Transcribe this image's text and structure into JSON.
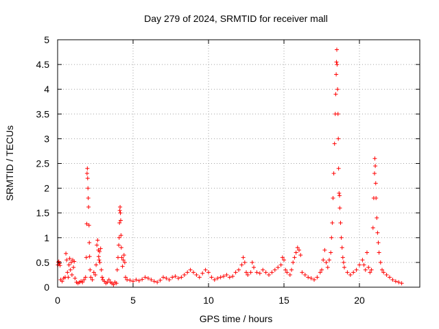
{
  "chart_data": {
    "type": "scatter",
    "title": "Day 279 of 2024, SRMTID for receiver mall",
    "xlabel": "GPS time / hours",
    "ylabel": "SRMTID / TECUs",
    "xlim": [
      0,
      24
    ],
    "ylim": [
      0,
      5
    ],
    "xticks": [
      0,
      5,
      10,
      15,
      20
    ],
    "yticks": [
      0,
      0.5,
      1,
      1.5,
      2,
      2.5,
      3,
      3.5,
      4,
      4.5,
      5
    ],
    "grid": true,
    "marker": "plus",
    "color": "#ff0000",
    "series": [
      {
        "name": "SRMTID",
        "points": [
          [
            0.02,
            0.45
          ],
          [
            0.05,
            0.5
          ],
          [
            0.08,
            0.52
          ],
          [
            0.12,
            0.48
          ],
          [
            0.16,
            0.44
          ],
          [
            0.2,
            0.15
          ],
          [
            0.3,
            0.12
          ],
          [
            0.4,
            0.18
          ],
          [
            0.5,
            0.2
          ],
          [
            0.55,
            0.68
          ],
          [
            0.6,
            0.55
          ],
          [
            0.65,
            0.3
          ],
          [
            0.7,
            0.2
          ],
          [
            0.75,
            0.45
          ],
          [
            0.8,
            0.58
          ],
          [
            0.85,
            0.35
          ],
          [
            0.9,
            0.5
          ],
          [
            0.95,
            0.25
          ],
          [
            1.0,
            0.55
          ],
          [
            1.05,
            0.4
          ],
          [
            1.1,
            0.52
          ],
          [
            1.15,
            0.18
          ],
          [
            1.25,
            0.1
          ],
          [
            1.35,
            0.08
          ],
          [
            1.45,
            0.1
          ],
          [
            1.55,
            0.12
          ],
          [
            1.65,
            0.1
          ],
          [
            1.75,
            0.15
          ],
          [
            1.85,
            0.2
          ],
          [
            1.9,
            0.6
          ],
          [
            1.93,
            1.28
          ],
          [
            1.95,
            2.3
          ],
          [
            1.97,
            2.4
          ],
          [
            1.99,
            2.2
          ],
          [
            2.01,
            2.0
          ],
          [
            2.03,
            1.8
          ],
          [
            2.05,
            1.62
          ],
          [
            2.08,
            1.25
          ],
          [
            2.1,
            0.9
          ],
          [
            2.12,
            0.62
          ],
          [
            2.15,
            0.35
          ],
          [
            2.2,
            0.2
          ],
          [
            2.3,
            0.15
          ],
          [
            2.4,
            0.3
          ],
          [
            2.5,
            0.25
          ],
          [
            2.55,
            0.45
          ],
          [
            2.6,
            0.85
          ],
          [
            2.65,
            0.95
          ],
          [
            2.7,
            0.75
          ],
          [
            2.72,
            0.62
          ],
          [
            2.75,
            0.55
          ],
          [
            2.78,
            0.72
          ],
          [
            2.8,
            0.5
          ],
          [
            2.85,
            0.78
          ],
          [
            2.9,
            0.35
          ],
          [
            2.95,
            0.2
          ],
          [
            3.0,
            0.15
          ],
          [
            3.1,
            0.12
          ],
          [
            3.2,
            0.08
          ],
          [
            3.3,
            0.1
          ],
          [
            3.4,
            0.15
          ],
          [
            3.5,
            0.1
          ],
          [
            3.6,
            0.08
          ],
          [
            3.7,
            0.05
          ],
          [
            3.8,
            0.1
          ],
          [
            3.9,
            0.08
          ],
          [
            3.95,
            0.35
          ],
          [
            4.0,
            0.6
          ],
          [
            4.05,
            0.85
          ],
          [
            4.08,
            1.0
          ],
          [
            4.1,
            1.3
          ],
          [
            4.12,
            1.55
          ],
          [
            4.14,
            1.62
          ],
          [
            4.16,
            1.5
          ],
          [
            4.18,
            1.35
          ],
          [
            4.2,
            1.05
          ],
          [
            4.22,
            0.8
          ],
          [
            4.25,
            0.6
          ],
          [
            4.3,
            0.42
          ],
          [
            4.35,
            0.55
          ],
          [
            4.4,
            0.65
          ],
          [
            4.45,
            0.5
          ],
          [
            4.5,
            0.2
          ],
          [
            4.6,
            0.15
          ],
          [
            4.8,
            0.14
          ],
          [
            5.0,
            0.12
          ],
          [
            5.2,
            0.15
          ],
          [
            5.4,
            0.13
          ],
          [
            5.6,
            0.16
          ],
          [
            5.8,
            0.2
          ],
          [
            6.0,
            0.18
          ],
          [
            6.2,
            0.15
          ],
          [
            6.4,
            0.12
          ],
          [
            6.6,
            0.1
          ],
          [
            6.8,
            0.14
          ],
          [
            7.0,
            0.2
          ],
          [
            7.2,
            0.18
          ],
          [
            7.4,
            0.15
          ],
          [
            7.6,
            0.2
          ],
          [
            7.8,
            0.22
          ],
          [
            8.0,
            0.18
          ],
          [
            8.2,
            0.2
          ],
          [
            8.4,
            0.25
          ],
          [
            8.6,
            0.3
          ],
          [
            8.8,
            0.35
          ],
          [
            9.0,
            0.3
          ],
          [
            9.2,
            0.25
          ],
          [
            9.4,
            0.2
          ],
          [
            9.6,
            0.28
          ],
          [
            9.8,
            0.35
          ],
          [
            10.0,
            0.3
          ],
          [
            10.2,
            0.2
          ],
          [
            10.4,
            0.15
          ],
          [
            10.6,
            0.18
          ],
          [
            10.8,
            0.2
          ],
          [
            11.0,
            0.22
          ],
          [
            11.2,
            0.25
          ],
          [
            11.4,
            0.2
          ],
          [
            11.6,
            0.22
          ],
          [
            11.8,
            0.3
          ],
          [
            12.0,
            0.35
          ],
          [
            12.2,
            0.45
          ],
          [
            12.3,
            0.6
          ],
          [
            12.4,
            0.5
          ],
          [
            12.5,
            0.3
          ],
          [
            12.6,
            0.25
          ],
          [
            12.8,
            0.3
          ],
          [
            12.9,
            0.5
          ],
          [
            13.0,
            0.4
          ],
          [
            13.2,
            0.3
          ],
          [
            13.4,
            0.28
          ],
          [
            13.6,
            0.35
          ],
          [
            13.8,
            0.3
          ],
          [
            14.0,
            0.25
          ],
          [
            14.2,
            0.3
          ],
          [
            14.4,
            0.35
          ],
          [
            14.6,
            0.4
          ],
          [
            14.8,
            0.45
          ],
          [
            14.9,
            0.6
          ],
          [
            15.0,
            0.55
          ],
          [
            15.1,
            0.35
          ],
          [
            15.2,
            0.3
          ],
          [
            15.4,
            0.25
          ],
          [
            15.5,
            0.35
          ],
          [
            15.6,
            0.5
          ],
          [
            15.7,
            0.6
          ],
          [
            15.8,
            0.7
          ],
          [
            15.9,
            0.8
          ],
          [
            16.0,
            0.75
          ],
          [
            16.1,
            0.65
          ],
          [
            16.2,
            0.3
          ],
          [
            16.4,
            0.25
          ],
          [
            16.6,
            0.2
          ],
          [
            16.8,
            0.18
          ],
          [
            17.0,
            0.15
          ],
          [
            17.2,
            0.2
          ],
          [
            17.4,
            0.3
          ],
          [
            17.5,
            0.35
          ],
          [
            17.6,
            0.55
          ],
          [
            17.7,
            0.75
          ],
          [
            17.8,
            0.5
          ],
          [
            17.9,
            0.4
          ],
          [
            18.0,
            0.55
          ],
          [
            18.1,
            0.7
          ],
          [
            18.15,
            1.0
          ],
          [
            18.2,
            1.3
          ],
          [
            18.25,
            1.8
          ],
          [
            18.3,
            2.3
          ],
          [
            18.35,
            2.9
          ],
          [
            18.4,
            3.5
          ],
          [
            18.43,
            3.9
          ],
          [
            18.46,
            4.3
          ],
          [
            18.48,
            4.55
          ],
          [
            18.5,
            4.8
          ],
          [
            18.52,
            4.5
          ],
          [
            18.55,
            4.0
          ],
          [
            18.58,
            3.5
          ],
          [
            18.6,
            3.0
          ],
          [
            18.62,
            2.4
          ],
          [
            18.65,
            1.9
          ],
          [
            18.68,
            1.85
          ],
          [
            18.7,
            1.6
          ],
          [
            18.75,
            1.3
          ],
          [
            18.8,
            1.0
          ],
          [
            18.85,
            0.8
          ],
          [
            18.9,
            0.6
          ],
          [
            18.95,
            0.5
          ],
          [
            19.0,
            0.4
          ],
          [
            19.2,
            0.3
          ],
          [
            19.4,
            0.25
          ],
          [
            19.6,
            0.3
          ],
          [
            19.8,
            0.35
          ],
          [
            20.0,
            0.45
          ],
          [
            20.2,
            0.55
          ],
          [
            20.3,
            0.45
          ],
          [
            20.4,
            0.35
          ],
          [
            20.5,
            0.7
          ],
          [
            20.6,
            0.4
          ],
          [
            20.7,
            0.3
          ],
          [
            20.8,
            0.35
          ],
          [
            20.9,
            1.2
          ],
          [
            20.95,
            1.8
          ],
          [
            21.0,
            2.3
          ],
          [
            21.02,
            2.6
          ],
          [
            21.05,
            2.45
          ],
          [
            21.08,
            2.1
          ],
          [
            21.1,
            1.8
          ],
          [
            21.15,
            1.4
          ],
          [
            21.2,
            1.1
          ],
          [
            21.25,
            0.9
          ],
          [
            21.3,
            0.7
          ],
          [
            21.4,
            0.5
          ],
          [
            21.5,
            0.35
          ],
          [
            21.6,
            0.3
          ],
          [
            21.8,
            0.25
          ],
          [
            22.0,
            0.2
          ],
          [
            22.2,
            0.15
          ],
          [
            22.4,
            0.12
          ],
          [
            22.6,
            0.1
          ],
          [
            22.8,
            0.08
          ]
        ]
      }
    ]
  }
}
